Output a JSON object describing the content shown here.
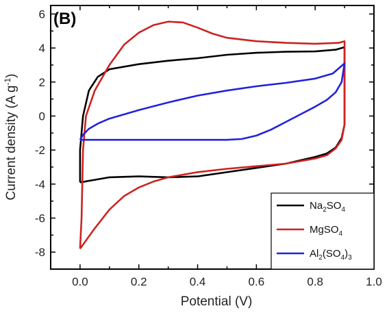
{
  "chart_data": {
    "type": "line",
    "panel_label": "(B)",
    "xlabel": "Potential (V)",
    "ylabel": {
      "main": "Current density (A g",
      "sup": "-1",
      "tail": ")"
    },
    "xlim": [
      -0.1,
      1.0
    ],
    "ylim": [
      -9,
      6.5
    ],
    "x_ticks": [
      0.0,
      0.2,
      0.4,
      0.6,
      0.8,
      1.0
    ],
    "x_tick_labels": [
      "0.0",
      "0.2",
      "0.4",
      "0.6",
      "0.8",
      "1.0"
    ],
    "y_ticks": [
      -8,
      -6,
      -4,
      -2,
      0,
      2,
      4,
      6
    ],
    "y_tick_labels": [
      "-8",
      "-6",
      "-4",
      "-2",
      "0",
      "2",
      "4",
      "6"
    ],
    "grid": false,
    "legend_position": "bottom-right",
    "series": [
      {
        "name": "Na2SO4",
        "legend": [
          {
            "t": "Na"
          },
          {
            "t": "2",
            "s": "sub"
          },
          {
            "t": "SO"
          },
          {
            "t": "4",
            "s": "sub"
          }
        ],
        "color": "#000000",
        "points": [
          [
            0.0,
            -3.9
          ],
          [
            0.0,
            -2.0
          ],
          [
            0.01,
            0.0
          ],
          [
            0.03,
            1.5
          ],
          [
            0.06,
            2.3
          ],
          [
            0.1,
            2.75
          ],
          [
            0.2,
            3.05
          ],
          [
            0.3,
            3.25
          ],
          [
            0.4,
            3.4
          ],
          [
            0.5,
            3.6
          ],
          [
            0.6,
            3.72
          ],
          [
            0.7,
            3.78
          ],
          [
            0.8,
            3.8
          ],
          [
            0.87,
            3.9
          ],
          [
            0.9,
            4.05
          ],
          [
            0.9,
            3.0
          ],
          [
            0.9,
            1.0
          ],
          [
            0.9,
            -0.5
          ],
          [
            0.89,
            -1.3
          ],
          [
            0.87,
            -1.85
          ],
          [
            0.84,
            -2.2
          ],
          [
            0.8,
            -2.4
          ],
          [
            0.7,
            -2.8
          ],
          [
            0.6,
            -3.05
          ],
          [
            0.5,
            -3.3
          ],
          [
            0.4,
            -3.55
          ],
          [
            0.3,
            -3.6
          ],
          [
            0.2,
            -3.55
          ],
          [
            0.1,
            -3.6
          ],
          [
            0.05,
            -3.75
          ],
          [
            0.0,
            -3.9
          ]
        ]
      },
      {
        "name": "MgSO4",
        "legend": [
          {
            "t": "MgSO"
          },
          {
            "t": "4",
            "s": "sub"
          }
        ],
        "color": "#cc2222",
        "points": [
          [
            0.0,
            -7.8
          ],
          [
            0.005,
            -6.0
          ],
          [
            0.01,
            -2.0
          ],
          [
            0.02,
            0.0
          ],
          [
            0.05,
            1.5
          ],
          [
            0.1,
            3.0
          ],
          [
            0.15,
            4.2
          ],
          [
            0.2,
            4.9
          ],
          [
            0.25,
            5.35
          ],
          [
            0.3,
            5.55
          ],
          [
            0.35,
            5.5
          ],
          [
            0.4,
            5.2
          ],
          [
            0.45,
            4.85
          ],
          [
            0.5,
            4.6
          ],
          [
            0.6,
            4.4
          ],
          [
            0.7,
            4.3
          ],
          [
            0.8,
            4.25
          ],
          [
            0.88,
            4.3
          ],
          [
            0.9,
            4.4
          ],
          [
            0.9,
            3.0
          ],
          [
            0.9,
            1.0
          ],
          [
            0.9,
            -0.5
          ],
          [
            0.89,
            -1.4
          ],
          [
            0.87,
            -1.9
          ],
          [
            0.84,
            -2.3
          ],
          [
            0.8,
            -2.5
          ],
          [
            0.7,
            -2.8
          ],
          [
            0.6,
            -2.95
          ],
          [
            0.5,
            -3.1
          ],
          [
            0.4,
            -3.3
          ],
          [
            0.3,
            -3.6
          ],
          [
            0.25,
            -3.85
          ],
          [
            0.2,
            -4.2
          ],
          [
            0.15,
            -4.7
          ],
          [
            0.1,
            -5.5
          ],
          [
            0.05,
            -6.6
          ],
          [
            0.0,
            -7.8
          ]
        ]
      },
      {
        "name": "Al2(SO4)3",
        "legend": [
          {
            "t": "Al"
          },
          {
            "t": "2",
            "s": "sub"
          },
          {
            "t": "(SO"
          },
          {
            "t": "4",
            "s": "sub"
          },
          {
            "t": ")"
          },
          {
            "t": "3",
            "s": "sub"
          }
        ],
        "color": "#2222dd",
        "points": [
          [
            0.0,
            -1.4
          ],
          [
            0.01,
            -1.1
          ],
          [
            0.03,
            -0.75
          ],
          [
            0.06,
            -0.45
          ],
          [
            0.1,
            -0.15
          ],
          [
            0.2,
            0.35
          ],
          [
            0.3,
            0.8
          ],
          [
            0.4,
            1.2
          ],
          [
            0.5,
            1.5
          ],
          [
            0.6,
            1.75
          ],
          [
            0.7,
            1.95
          ],
          [
            0.8,
            2.2
          ],
          [
            0.86,
            2.5
          ],
          [
            0.9,
            3.1
          ],
          [
            0.89,
            2.0
          ],
          [
            0.87,
            1.4
          ],
          [
            0.84,
            0.95
          ],
          [
            0.8,
            0.55
          ],
          [
            0.75,
            0.1
          ],
          [
            0.7,
            -0.35
          ],
          [
            0.65,
            -0.8
          ],
          [
            0.6,
            -1.15
          ],
          [
            0.55,
            -1.35
          ],
          [
            0.5,
            -1.4
          ],
          [
            0.4,
            -1.4
          ],
          [
            0.3,
            -1.4
          ],
          [
            0.2,
            -1.4
          ],
          [
            0.1,
            -1.4
          ],
          [
            0.03,
            -1.4
          ],
          [
            0.0,
            -1.4
          ]
        ]
      }
    ]
  }
}
